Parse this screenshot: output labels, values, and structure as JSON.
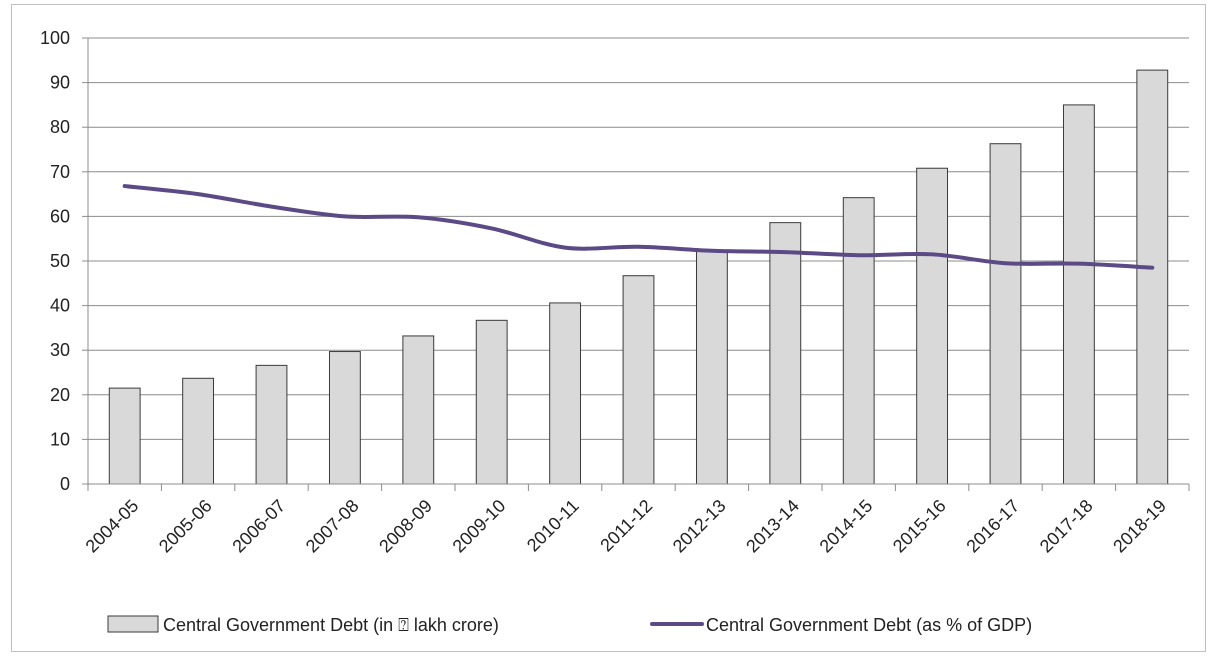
{
  "chart_data": {
    "type": "bar",
    "title": "",
    "xlabel": "",
    "ylabel": "",
    "ylim": [
      0,
      100
    ],
    "yticks": [
      "0",
      "10",
      "20",
      "30",
      "40",
      "50",
      "60",
      "70",
      "80",
      "90",
      "100"
    ],
    "grid": true,
    "legend_position": "bottom",
    "categories": [
      "2004-05",
      "2005-06",
      "2006-07",
      "2007-08",
      "2008-09",
      "2009-10",
      "2010-11",
      "2011-12",
      "2012-13",
      "2013-14",
      "2014-15",
      "2015-16",
      "2016-17",
      "2017-18",
      "2018-19"
    ],
    "series": [
      {
        "name": "Central Government  Debt (in ⍰ lakh crore)",
        "type": "bar",
        "color": "#d9d9d9",
        "values": [
          21.5,
          23.7,
          26.6,
          29.7,
          33.2,
          36.7,
          40.6,
          46.7,
          52.3,
          58.6,
          64.2,
          70.8,
          76.3,
          85.0,
          92.8
        ]
      },
      {
        "name": "Central Government Debt (as % of GDP)",
        "type": "line",
        "color": "#5b4a86",
        "values": [
          66.8,
          65.0,
          62.2,
          60.0,
          59.8,
          57.3,
          53.0,
          53.2,
          52.3,
          52.0,
          51.3,
          51.5,
          49.5,
          49.4,
          48.5
        ]
      }
    ]
  }
}
